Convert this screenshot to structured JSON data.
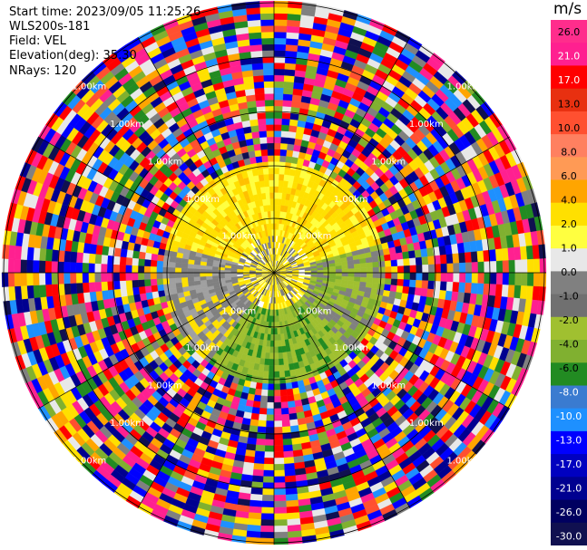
{
  "info": {
    "start_time": "Start time: 2023/09/05 11:25:26",
    "instrument": "WLS200s-181",
    "field": "Field: VEL",
    "elevation": "Elevation(deg): 35.30",
    "nrays": "NRays: 120"
  },
  "colorbar": {
    "unit": "m/s",
    "ticks": [
      "26.0",
      "21.0",
      "17.0",
      "13.0",
      "10.0",
      "8.0",
      "6.0",
      "4.0",
      "2.0",
      "1.0",
      "0.0",
      "-1.0",
      "-2.0",
      "-4.0",
      "-6.0",
      "-8.0",
      "-10.0",
      "-13.0",
      "-17.0",
      "-21.0",
      "-26.0",
      "-30.0"
    ],
    "colors": [
      "#ff2d8c",
      "#ff2090",
      "#ff0000",
      "#e83010",
      "#ff5030",
      "#ff8060",
      "#ff9a55",
      "#ffa500",
      "#ffe000",
      "#ffff40",
      "#e8e8e8",
      "#808080",
      "#707070",
      "#a0c030",
      "#80b030",
      "#228b22",
      "#3a7bd0",
      "#1e90ff",
      "#0000ff",
      "#0000c0",
      "#000090",
      "#000060",
      "#101050"
    ]
  },
  "chart_data": {
    "type": "ppi",
    "field": "VEL",
    "unit": "m/s",
    "nrays": 120,
    "elevation_deg": 35.3,
    "range_rings_km": [
      1.0,
      2.0,
      3.0,
      4.0,
      5.0
    ],
    "range_ring_label": "1.00km",
    "max_range_km": 5.0,
    "spoke_angles_deg": [
      0,
      30,
      60,
      90,
      120,
      150,
      180,
      210,
      240,
      270,
      300,
      330
    ],
    "regions": [
      {
        "range_km": [
          0.0,
          0.6
        ],
        "note": "center",
        "mix": [
          [
            "#ffe000",
            0.5
          ],
          [
            "#ffff40",
            0.2
          ],
          [
            "#808080",
            0.3
          ]
        ]
      },
      {
        "range_km": [
          0.6,
          2.0
        ],
        "sector": "north",
        "mix": [
          [
            "#ffe000",
            0.55
          ],
          [
            "#ffff40",
            0.3
          ],
          [
            "#ffc000",
            0.15
          ]
        ]
      },
      {
        "range_km": [
          0.6,
          2.0
        ],
        "sector": "east-southeast",
        "mix": [
          [
            "#808080",
            0.4
          ],
          [
            "#a0c030",
            0.35
          ],
          [
            "#80b030",
            0.25
          ]
        ]
      },
      {
        "range_km": [
          0.6,
          2.0
        ],
        "sector": "south",
        "mix": [
          [
            "#a0c030",
            0.45
          ],
          [
            "#80b030",
            0.3
          ],
          [
            "#228b22",
            0.25
          ]
        ]
      },
      {
        "range_km": [
          0.6,
          2.0
        ],
        "sector": "west-southwest",
        "mix": [
          [
            "#808080",
            0.5
          ],
          [
            "#a0a0a0",
            0.3
          ],
          [
            "#ffe000",
            0.2
          ]
        ]
      },
      {
        "range_km": [
          2.0,
          5.0
        ],
        "note": "noise",
        "mix": [
          [
            "#ff2090",
            0.12
          ],
          [
            "#ff0000",
            0.1
          ],
          [
            "#0000ff",
            0.1
          ],
          [
            "#000090",
            0.08
          ],
          [
            "#ffe000",
            0.1
          ],
          [
            "#ffa500",
            0.08
          ],
          [
            "#e8e8e8",
            0.08
          ],
          [
            "#228b22",
            0.06
          ],
          [
            "#80b030",
            0.06
          ],
          [
            "#1e90ff",
            0.06
          ],
          [
            "#ff5030",
            0.06
          ],
          [
            "#808080",
            0.05
          ],
          [
            "#101050",
            0.05
          ]
        ]
      }
    ]
  }
}
